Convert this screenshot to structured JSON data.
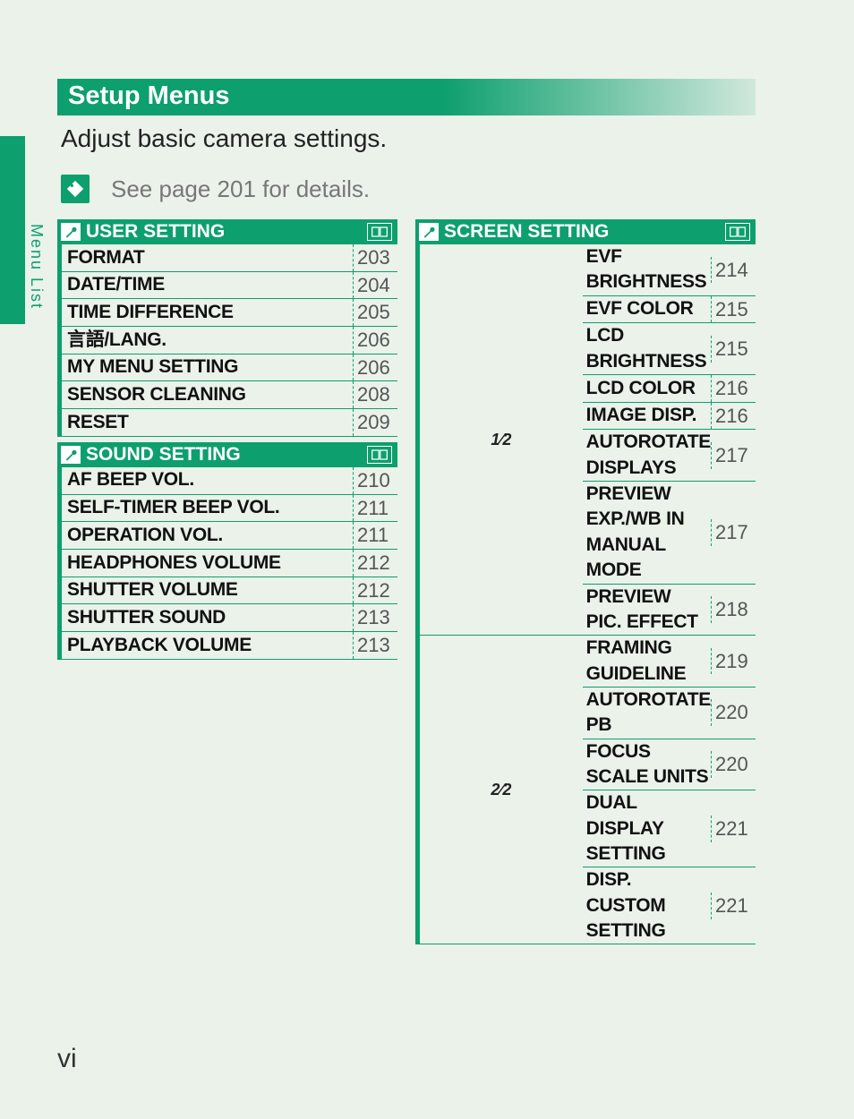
{
  "side_label": "Menu List",
  "title": "Setup Menus",
  "subtitle": "Adjust basic camera settings.",
  "note": "See page 201 for details.",
  "page_number": "vi",
  "colors": {
    "brand": "#0d9f6e",
    "page_bg": "#eaf2ea",
    "muted": "#777"
  },
  "user_setting": {
    "header": "USER SETTING",
    "items": [
      {
        "label": "FORMAT",
        "page": "203"
      },
      {
        "label": "DATE/TIME",
        "page": "204"
      },
      {
        "label": "TIME DIFFERENCE",
        "page": "205"
      },
      {
        "label": "言語/LANG.",
        "page": "206"
      },
      {
        "label": "MY MENU SETTING",
        "page": "206"
      },
      {
        "label": "SENSOR CLEANING",
        "page": "208"
      },
      {
        "label": "RESET",
        "page": "209"
      }
    ]
  },
  "sound_setting": {
    "header": "SOUND SETTING",
    "items": [
      {
        "label": "AF BEEP VOL.",
        "page": "210"
      },
      {
        "label": "SELF-TIMER BEEP VOL.",
        "page": "211"
      },
      {
        "label": "OPERATION VOL.",
        "page": "211"
      },
      {
        "label": "HEADPHONES VOLUME",
        "page": "212"
      },
      {
        "label": "SHUTTER VOLUME",
        "page": "212"
      },
      {
        "label": "SHUTTER SOUND",
        "page": "213"
      },
      {
        "label": "PLAYBACK VOLUME",
        "page": "213"
      }
    ]
  },
  "screen_setting": {
    "header": "SCREEN SETTING",
    "group1_label": "1⁄2",
    "group1": [
      {
        "label": "EVF BRIGHTNESS",
        "page": "214"
      },
      {
        "label": "EVF COLOR",
        "page": "215"
      },
      {
        "label": "LCD BRIGHTNESS",
        "page": "215"
      },
      {
        "label": "LCD COLOR",
        "page": "216"
      },
      {
        "label": "IMAGE DISP.",
        "page": "216"
      },
      {
        "label": "AUTOROTATE DISPLAYS",
        "page": "217"
      },
      {
        "label": "PREVIEW EXP./WB IN MANUAL MODE",
        "page": "217"
      },
      {
        "label": "PREVIEW PIC. EFFECT",
        "page": "218"
      }
    ],
    "group2_label": "2⁄2",
    "group2": [
      {
        "label": "FRAMING GUIDELINE",
        "page": "219"
      },
      {
        "label": "AUTOROTATE PB",
        "page": "220"
      },
      {
        "label": "FOCUS SCALE UNITS",
        "page": "220"
      },
      {
        "label": "DUAL DISPLAY SETTING",
        "page": "221"
      },
      {
        "label": "DISP. CUSTOM SETTING",
        "page": "221"
      }
    ]
  }
}
